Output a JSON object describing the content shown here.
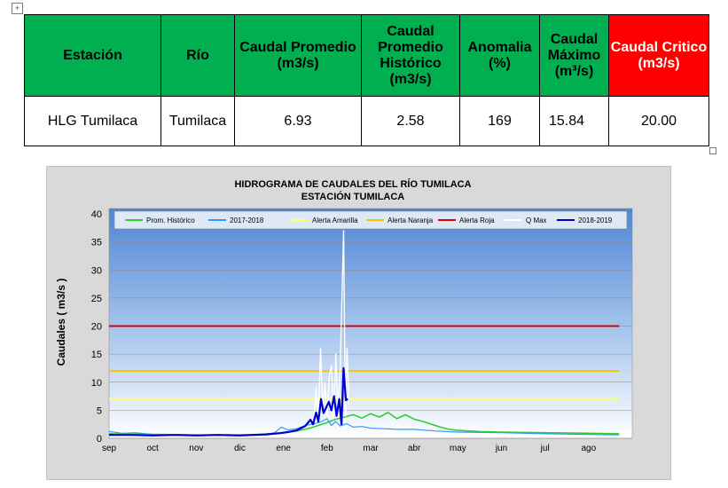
{
  "table": {
    "headers": [
      "Estación",
      "Río",
      "Caudal Promedio (m3/s)",
      "Caudal Promedio Histórico (m3/s)",
      "Anomalia (%)",
      "Caudal Máximo (m³/s)",
      "Caudal Critico (m3/s)"
    ],
    "row": [
      "HLG Tumilaca",
      "Tumilaca",
      "6.93",
      "2.58",
      "169",
      "15.84",
      "20.00"
    ]
  },
  "colors": {
    "header_green": "#00b050",
    "header_red": "#ff0000"
  },
  "chart_data": {
    "type": "line",
    "title": "HIDROGRAMA DE CAUDALES DEL RÍO TUMILACA",
    "subtitle": "ESTACIÓN TUMILACA",
    "ylabel": "Caudales ( m3/s )",
    "xlabel": "",
    "ylim": [
      0,
      40
    ],
    "yticks": [
      0,
      5,
      10,
      15,
      20,
      25,
      30,
      35,
      40
    ],
    "xlim": [
      0,
      12
    ],
    "xticks": [
      "sep",
      "oct",
      "nov",
      "dic",
      "ene",
      "feb",
      "mar",
      "abr",
      "may",
      "jun",
      "jul",
      "ago"
    ],
    "grid": true,
    "legend_position": "top",
    "series": [
      {
        "name": "Prom. Histórico",
        "color": "#33cc33",
        "points": [
          [
            0,
            0.8
          ],
          [
            1,
            0.7
          ],
          [
            2,
            0.6
          ],
          [
            3,
            0.6
          ],
          [
            3.5,
            0.7
          ],
          [
            4,
            1.0
          ],
          [
            4.3,
            1.3
          ],
          [
            4.6,
            1.8
          ],
          [
            4.8,
            2.3
          ],
          [
            5,
            2.8
          ],
          [
            5.2,
            3.4
          ],
          [
            5.4,
            3.8
          ],
          [
            5.6,
            4.2
          ],
          [
            5.8,
            3.6
          ],
          [
            6,
            4.4
          ],
          [
            6.2,
            3.8
          ],
          [
            6.4,
            4.6
          ],
          [
            6.6,
            3.5
          ],
          [
            6.8,
            4.2
          ],
          [
            7,
            3.4
          ],
          [
            7.2,
            3.0
          ],
          [
            7.4,
            2.5
          ],
          [
            7.6,
            2.0
          ],
          [
            7.8,
            1.6
          ],
          [
            8,
            1.4
          ],
          [
            8.5,
            1.2
          ],
          [
            9,
            1.1
          ],
          [
            10,
            1.0
          ],
          [
            11,
            0.9
          ],
          [
            11.7,
            0.8
          ]
        ]
      },
      {
        "name": "2017-2018",
        "color": "#3399ff",
        "points": [
          [
            0,
            1.2
          ],
          [
            0.3,
            0.9
          ],
          [
            0.6,
            1.0
          ],
          [
            1,
            0.7
          ],
          [
            2,
            0.6
          ],
          [
            3,
            0.6
          ],
          [
            3.5,
            0.6
          ],
          [
            3.8,
            1.0
          ],
          [
            3.95,
            2.0
          ],
          [
            4.1,
            1.5
          ],
          [
            4.3,
            1.7
          ],
          [
            4.5,
            2.3
          ],
          [
            4.7,
            2.6
          ],
          [
            4.85,
            2.9
          ],
          [
            5,
            3.5
          ],
          [
            5.1,
            2.3
          ],
          [
            5.2,
            3.0
          ],
          [
            5.3,
            2.2
          ],
          [
            5.45,
            2.6
          ],
          [
            5.6,
            2.0
          ],
          [
            5.8,
            2.1
          ],
          [
            6,
            1.8
          ],
          [
            6.3,
            1.7
          ],
          [
            6.6,
            1.6
          ],
          [
            7,
            1.6
          ],
          [
            7.5,
            1.3
          ],
          [
            8,
            1.1
          ],
          [
            9,
            1.0
          ],
          [
            10,
            0.8
          ],
          [
            11,
            0.7
          ],
          [
            11.7,
            0.6
          ]
        ]
      },
      {
        "name": "Alerta Amarilla",
        "color": "#ffff66",
        "points": [
          [
            0,
            7
          ],
          [
            11.7,
            7
          ]
        ]
      },
      {
        "name": "Alerta Naranja",
        "color": "#ffc000",
        "points": [
          [
            0,
            12
          ],
          [
            11.7,
            12
          ]
        ]
      },
      {
        "name": "Alerta Roja",
        "color": "#e00000",
        "points": [
          [
            0,
            20
          ],
          [
            11.7,
            20
          ]
        ]
      },
      {
        "name": "Q Max",
        "color": "#ffffff",
        "points": [
          [
            4.7,
            3.0
          ],
          [
            4.75,
            9.0
          ],
          [
            4.8,
            3.5
          ],
          [
            4.85,
            16.0
          ],
          [
            4.9,
            5.0
          ],
          [
            4.95,
            10.0
          ],
          [
            5,
            4.0
          ],
          [
            5.05,
            11.0
          ],
          [
            5.1,
            13.0
          ],
          [
            5.15,
            3.5
          ],
          [
            5.2,
            15.0
          ],
          [
            5.25,
            5.0
          ],
          [
            5.3,
            12.0
          ],
          [
            5.38,
            37.0
          ],
          [
            5.42,
            4.0
          ],
          [
            5.46,
            16.0
          ],
          [
            5.5,
            6.0
          ]
        ]
      },
      {
        "name": "2018-2019",
        "color": "#0000cc",
        "points": [
          [
            0,
            0.6
          ],
          [
            0.5,
            0.6
          ],
          [
            1,
            0.5
          ],
          [
            1.5,
            0.6
          ],
          [
            2,
            0.5
          ],
          [
            2.5,
            0.6
          ],
          [
            3,
            0.5
          ],
          [
            3.3,
            0.6
          ],
          [
            3.6,
            0.7
          ],
          [
            3.9,
            0.9
          ],
          [
            4.1,
            1.1
          ],
          [
            4.3,
            1.4
          ],
          [
            4.5,
            2.2
          ],
          [
            4.62,
            3.3
          ],
          [
            4.68,
            2.5
          ],
          [
            4.75,
            4.6
          ],
          [
            4.8,
            3.0
          ],
          [
            4.86,
            7.0
          ],
          [
            4.92,
            4.5
          ],
          [
            4.98,
            5.5
          ],
          [
            5.04,
            6.5
          ],
          [
            5.1,
            5.0
          ],
          [
            5.16,
            7.5
          ],
          [
            5.22,
            4.0
          ],
          [
            5.28,
            7.0
          ],
          [
            5.33,
            2.5
          ],
          [
            5.38,
            12.5
          ],
          [
            5.43,
            6.8
          ],
          [
            5.48,
            7.0
          ]
        ]
      }
    ]
  }
}
